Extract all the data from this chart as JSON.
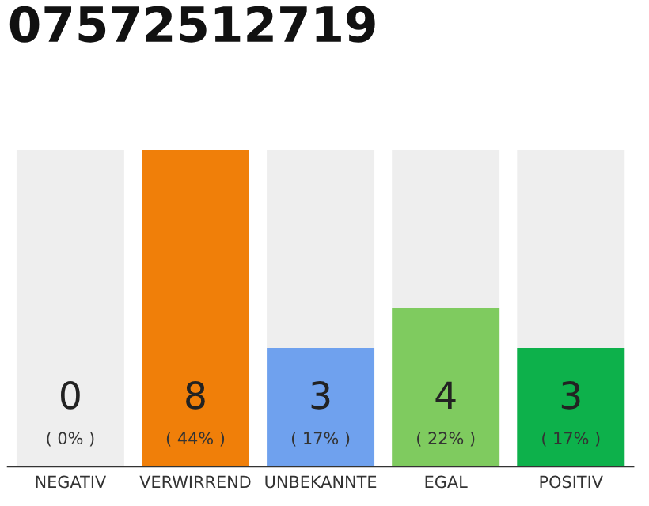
{
  "chart_data": {
    "type": "bar",
    "title": "07572512719",
    "categories": [
      "NEGATIV",
      "VERWIRREND",
      "UNBEKANNTE",
      "EGAL",
      "POSITIV"
    ],
    "values": [
      0,
      8,
      3,
      4,
      3
    ],
    "colors": [
      "#999999",
      "#f07f09",
      "#6fa1ee",
      "#7fcb5f",
      "#0db14b"
    ],
    "data_labels": true,
    "annotations": [
      "( 0% )",
      "( 44% )",
      "( 17% )",
      "( 22% )",
      "( 17% )"
    ],
    "bands": [
      {
        "axis": "x",
        "from": "NEGATIV",
        "to": "NEGATIV",
        "color": "#eeeeee"
      },
      {
        "axis": "x",
        "from": "UNBEKANNTE",
        "to": "UNBEKANNTE",
        "color": "#eeeeee"
      },
      {
        "axis": "x",
        "from": "EGAL",
        "to": "EGAL",
        "color": "#eeeeee"
      },
      {
        "axis": "x",
        "from": "POSITIV",
        "to": "POSITIV",
        "color": "#eeeeee"
      }
    ],
    "grid": false,
    "legend": false
  }
}
